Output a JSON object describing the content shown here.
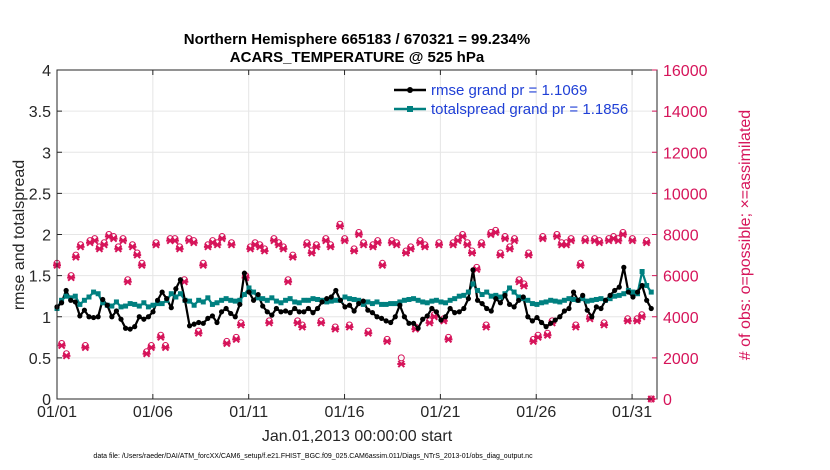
{
  "chart_data": {
    "type": "line",
    "title_line1": "Northern Hemisphere 665183 / 670321 = 99.234%",
    "title_line2": "ACARS_TEMPERATURE @ 525 hPa",
    "xlabel": "Jan.01,2013 00:00:00 start",
    "ylabel_left": "rmse and totalspread",
    "ylabel_right": "# of obs: o=possible; ×=assimilated",
    "footnote": "data file: /Users/raeder/DAI/ATM_forcXX/CAM6_setup/f.e21.FHIST_BGC.f09_025.CAM6assim.011/Diags_NTrS_2013-01/obs_diag_output.nc",
    "xlim": [
      0,
      31.3
    ],
    "ylim_left": [
      0,
      4
    ],
    "ylim_right": [
      0,
      16000
    ],
    "x_ticks": [
      0,
      5,
      10,
      15,
      20,
      25,
      30
    ],
    "x_tick_labels": [
      "01/01",
      "01/06",
      "01/11",
      "01/16",
      "01/21",
      "01/26",
      "01/31"
    ],
    "y_left_ticks": [
      0,
      0.5,
      1,
      1.5,
      2,
      2.5,
      3,
      3.5,
      4
    ],
    "y_left_tick_labels": [
      "0",
      "0.5",
      "1",
      "1.5",
      "2",
      "2.5",
      "3",
      "3.5",
      "4"
    ],
    "y_right_ticks": [
      0,
      2000,
      4000,
      6000,
      8000,
      10000,
      12000,
      14000,
      16000
    ],
    "y_right_tick_labels": [
      "0",
      "2000",
      "4000",
      "6000",
      "8000",
      "10000",
      "12000",
      "14000",
      "16000"
    ],
    "colors": {
      "rmse": "#000000",
      "spread": "#008080",
      "obs": "#d6145a",
      "legend_text": "#1f3fd6"
    },
    "series": [
      {
        "name": "rmse grand pr = 1.1069",
        "axis": "left",
        "values": [
          1.12,
          1.17,
          1.32,
          1.2,
          1.18,
          1.01,
          1.08,
          1.0,
          0.99,
          1.0,
          1.21,
          1.14,
          1.0,
          1.07,
          0.97,
          0.86,
          0.85,
          0.88,
          1.0,
          0.97,
          1.0,
          1.06,
          1.2,
          1.3,
          1.22,
          1.11,
          1.34,
          1.45,
          1.2,
          0.89,
          0.91,
          0.93,
          0.92,
          0.98,
          1.01,
          0.93,
          1.06,
          1.1,
          1.04,
          1.0,
          1.15,
          1.53,
          1.3,
          1.2,
          1.27,
          1.13,
          1.06,
          1.02,
          1.1,
          1.06,
          1.07,
          1.05,
          1.1,
          1.06,
          1.06,
          1.1,
          1.05,
          1.1,
          1.18,
          1.22,
          1.24,
          1.32,
          1.2,
          1.12,
          1.14,
          1.07,
          1.16,
          1.19,
          1.08,
          1.05,
          1.0,
          0.98,
          0.95,
          0.93,
          1.0,
          1.14,
          1.0,
          0.92,
          0.92,
          0.86,
          0.97,
          1.01,
          1.1,
          1.06,
          0.96,
          1.0,
          1.1,
          1.05,
          1.06,
          1.1,
          1.22,
          1.57,
          1.2,
          1.16,
          1.1,
          1.07,
          1.22,
          1.17,
          1.26,
          1.15,
          1.12,
          1.2,
          1.24,
          1.0,
          0.95,
          0.99,
          0.93,
          0.88,
          0.92,
          0.96,
          1.0,
          1.07,
          1.1,
          1.3,
          1.2,
          1.26,
          1.08,
          1.0,
          1.12,
          1.1,
          1.2,
          1.26,
          1.32,
          1.36,
          1.6,
          1.3,
          1.24,
          1.3,
          1.38,
          1.2,
          1.1
        ]
      },
      {
        "name": "totalspread grand pr = 1.1856",
        "axis": "left",
        "values": [
          1.1,
          1.2,
          1.25,
          1.23,
          1.25,
          1.15,
          1.2,
          1.24,
          1.3,
          1.28,
          1.17,
          1.14,
          1.13,
          1.18,
          1.12,
          1.13,
          1.16,
          1.15,
          1.13,
          1.17,
          1.12,
          1.14,
          1.16,
          1.16,
          1.2,
          1.28,
          1.24,
          1.28,
          1.2,
          1.19,
          1.14,
          1.2,
          1.18,
          1.23,
          1.15,
          1.17,
          1.2,
          1.22,
          1.2,
          1.19,
          1.2,
          1.27,
          1.35,
          1.3,
          1.23,
          1.22,
          1.2,
          1.23,
          1.19,
          1.17,
          1.2,
          1.22,
          1.18,
          1.17,
          1.2,
          1.2,
          1.22,
          1.21,
          1.2,
          1.18,
          1.19,
          1.2,
          1.2,
          1.24,
          1.22,
          1.21,
          1.2,
          1.15,
          1.18,
          1.16,
          1.18,
          1.15,
          1.15,
          1.16,
          1.16,
          1.18,
          1.2,
          1.21,
          1.22,
          1.2,
          1.18,
          1.17,
          1.19,
          1.2,
          1.18,
          1.17,
          1.2,
          1.22,
          1.25,
          1.26,
          1.3,
          1.4,
          1.32,
          1.27,
          1.3,
          1.25,
          1.26,
          1.24,
          1.28,
          1.35,
          1.3,
          1.24,
          1.22,
          1.2,
          1.16,
          1.15,
          1.17,
          1.18,
          1.2,
          1.19,
          1.18,
          1.2,
          1.22,
          1.21,
          1.2,
          1.22,
          1.19,
          1.2,
          1.21,
          1.22,
          1.2,
          1.22,
          1.25,
          1.26,
          1.28,
          1.32,
          1.3,
          1.28,
          1.55,
          1.38,
          1.3
        ]
      },
      {
        "name": "obs_possible",
        "axis": "right",
        "values": [
          6600,
          2700,
          2200,
          6000,
          7000,
          7500,
          2600,
          7700,
          7800,
          7400,
          7600,
          8000,
          7900,
          7400,
          7800,
          5800,
          7500,
          7100,
          6600,
          2300,
          2600,
          7600,
          3100,
          2600,
          7800,
          7800,
          7400,
          5800,
          7800,
          7700,
          3300,
          6600,
          7500,
          7700,
          7600,
          7900,
          2800,
          7600,
          3000,
          3700,
          6000,
          7400,
          7600,
          7500,
          7300,
          3800,
          7800,
          7600,
          7400,
          5800,
          7000,
          3800,
          3600,
          7600,
          7200,
          7500,
          3800,
          7800,
          7500,
          3500,
          8500,
          7800,
          3600,
          7300,
          8100,
          7600,
          3300,
          7500,
          7700,
          6600,
          2900,
          7700,
          7600,
          2000,
          7200,
          7400,
          3500,
          7700,
          7500,
          3800,
          4100,
          7600,
          3900,
          3000,
          7600,
          7800,
          8000,
          7600,
          7200,
          6400,
          7600,
          3600,
          8100,
          8200,
          7100,
          7900,
          7400,
          7800,
          5800,
          5600,
          7100,
          2900,
          3100,
          7900,
          3200,
          3800,
          8000,
          7600,
          7600,
          7800,
          3600,
          6600,
          7800,
          4000,
          7800,
          7700,
          3700,
          7800,
          7900,
          7800,
          8100,
          3900,
          7800,
          3900,
          4100,
          7700,
          0
        ]
      },
      {
        "name": "obs_assimilated",
        "axis": "right",
        "values": [
          6500,
          2600,
          2100,
          5900,
          6900,
          7400,
          2500,
          7600,
          7700,
          7300,
          7500,
          7900,
          7800,
          7300,
          7700,
          5700,
          7400,
          7000,
          6500,
          2200,
          2500,
          7500,
          3000,
          2500,
          7700,
          7700,
          7300,
          5700,
          7700,
          7600,
          3200,
          6500,
          7400,
          7600,
          7500,
          7800,
          2700,
          7500,
          2900,
          3600,
          5900,
          7300,
          7500,
          7400,
          7200,
          3700,
          7700,
          7500,
          7300,
          5700,
          6900,
          3700,
          3500,
          7500,
          7100,
          7400,
          3700,
          7700,
          7400,
          3400,
          8400,
          7700,
          3500,
          7200,
          8000,
          7500,
          3200,
          7400,
          7600,
          6500,
          2800,
          7600,
          7500,
          1700,
          7100,
          7300,
          3400,
          7600,
          7400,
          3700,
          4000,
          7500,
          3800,
          2900,
          7500,
          7700,
          7900,
          7500,
          7100,
          6300,
          7500,
          3500,
          8000,
          8100,
          7000,
          7800,
          7300,
          7700,
          5700,
          5500,
          7000,
          2800,
          3000,
          7800,
          3100,
          3700,
          7900,
          7500,
          7500,
          7700,
          3500,
          6500,
          7700,
          3900,
          7700,
          7600,
          3600,
          7700,
          7800,
          7700,
          8000,
          3800,
          7700,
          3800,
          4000,
          7600,
          0
        ]
      }
    ],
    "legend": [
      {
        "label": "rmse grand pr = 1.1069"
      },
      {
        "label": "totalspread grand pr = 1.1856"
      }
    ]
  }
}
